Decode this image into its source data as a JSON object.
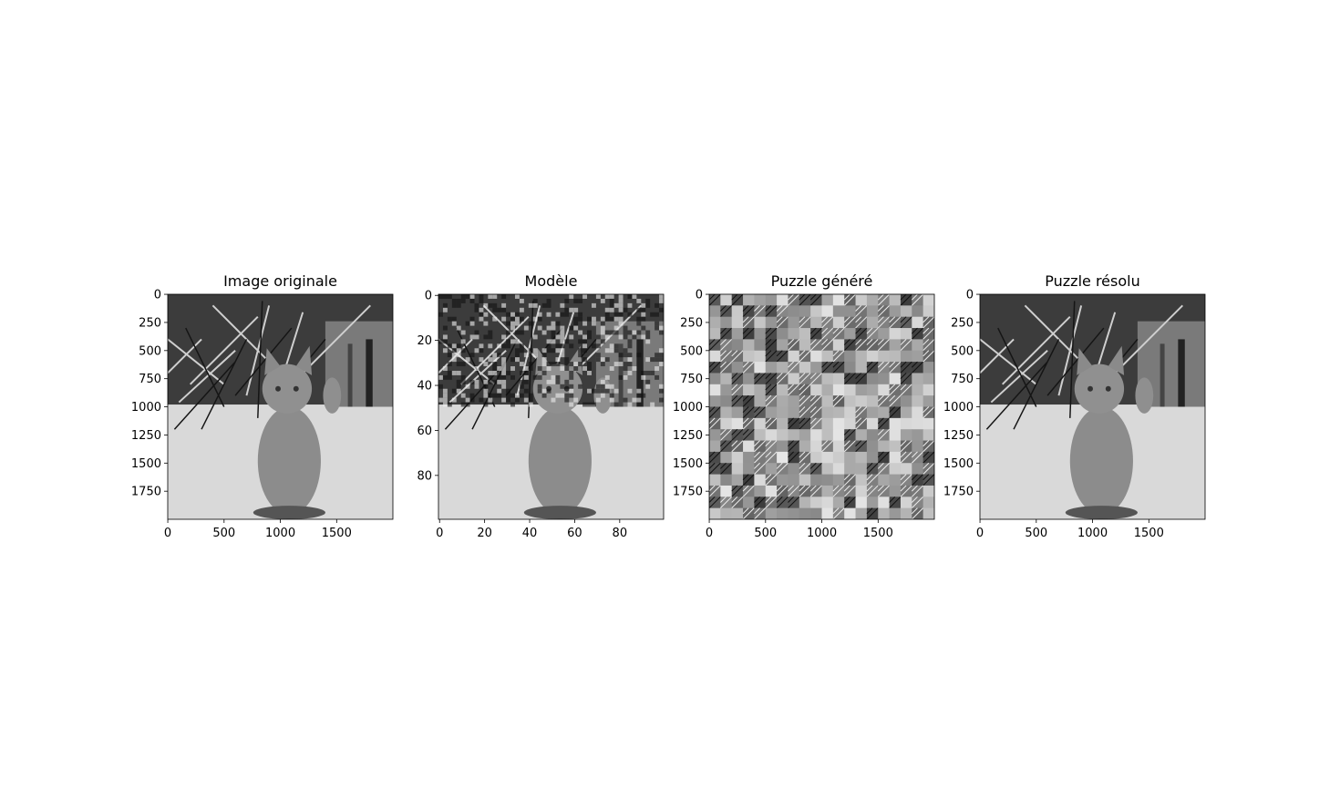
{
  "chart_data": [
    {
      "type": "image",
      "title": "Image originale",
      "xlim": [
        -0.5,
        1999.5
      ],
      "ylim": [
        1999.5,
        -0.5
      ],
      "xticks": [
        0,
        500,
        1000,
        1500
      ],
      "yticks": [
        0,
        250,
        500,
        750,
        1000,
        1250,
        1500,
        1750
      ]
    },
    {
      "type": "image",
      "title": "Modèle",
      "xlim": [
        -0.5,
        99.5
      ],
      "ylim": [
        99.5,
        -0.5
      ],
      "xticks": [
        0,
        20,
        40,
        60,
        80
      ],
      "yticks": [
        0,
        20,
        40,
        60,
        80
      ]
    },
    {
      "type": "image",
      "title": "Puzzle généré",
      "xlim": [
        -0.5,
        1999.5
      ],
      "ylim": [
        1999.5,
        -0.5
      ],
      "xticks": [
        0,
        500,
        1000,
        1500
      ],
      "yticks": [
        0,
        250,
        500,
        750,
        1000,
        1250,
        1500,
        1750
      ]
    },
    {
      "type": "image",
      "title": "Puzzle résolu",
      "xlim": [
        -0.5,
        1999.5
      ],
      "ylim": [
        1999.5,
        -0.5
      ],
      "xticks": [
        0,
        500,
        1000,
        1500
      ],
      "yticks": [
        0,
        250,
        500,
        750,
        1000,
        1250,
        1500,
        1750
      ]
    }
  ]
}
